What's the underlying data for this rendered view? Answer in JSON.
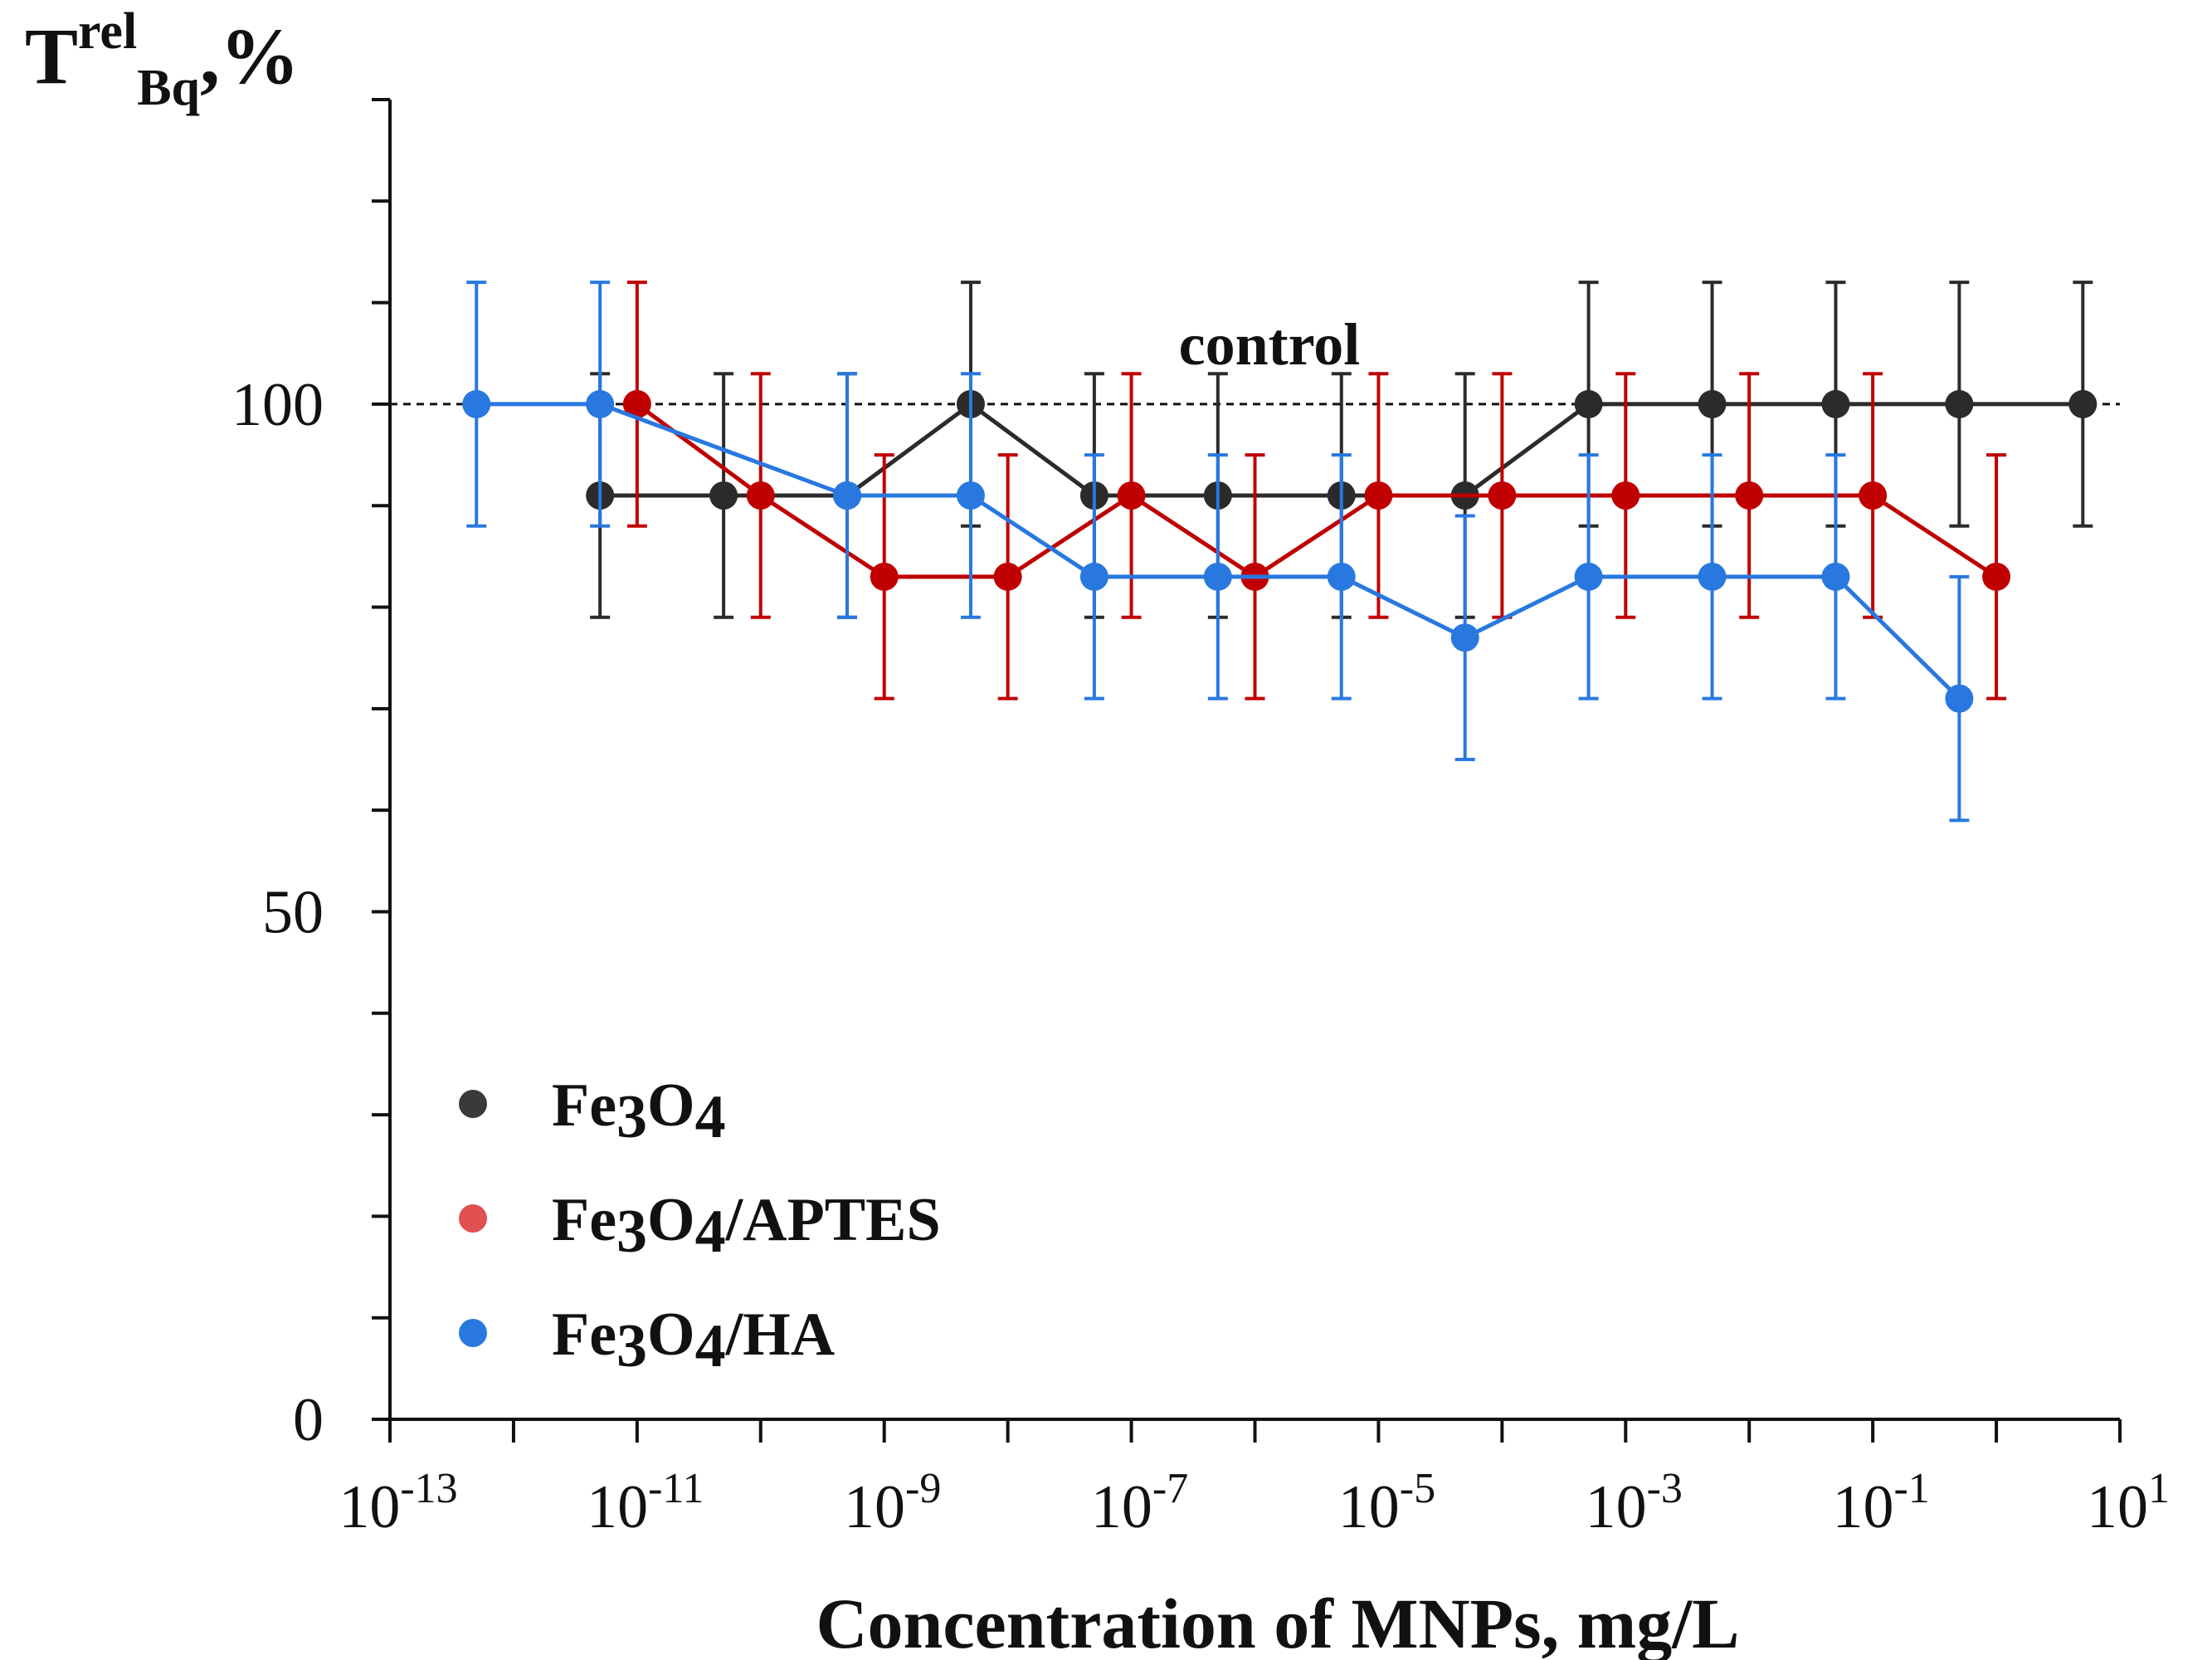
{
  "chart_data": {
    "type": "line",
    "ylabel": {
      "main": "T",
      "sup": "rel",
      "sub": "Bq",
      "suffix": ",%"
    },
    "xlabel": "Concentration of MNPs, mg/L",
    "x_scale": "log10",
    "xlim_exp": [
      -13,
      1
    ],
    "ylim": [
      0,
      130
    ],
    "y_ticks": [
      0,
      50,
      100
    ],
    "x_tick_labels": [
      {
        "base": "10",
        "exp": "-13"
      },
      {
        "base": "10",
        "exp": "-11"
      },
      {
        "base": "10",
        "exp": "-9"
      },
      {
        "base": "10",
        "exp": "-7"
      },
      {
        "base": "10",
        "exp": "-5"
      },
      {
        "base": "10",
        "exp": "-3"
      },
      {
        "base": "10",
        "exp": "-1"
      },
      {
        "base": "10",
        "exp": "1"
      }
    ],
    "control": {
      "label": "control",
      "value": 100
    },
    "legend_position": "bottom-left",
    "series": [
      {
        "name": "Fe3O4",
        "label_parts": [
          {
            "t": "Fe"
          },
          {
            "t": "3",
            "sub": true
          },
          {
            "t": "O"
          },
          {
            "t": "4",
            "sub": true
          }
        ],
        "color": "#2b2b2b",
        "log_x": [
          -11.3,
          -10.3,
          -9.3,
          -8.3,
          -7.3,
          -6.3,
          -5.3,
          -4.3,
          -3.3,
          -2.3,
          -1.3,
          -0.3,
          0.7
        ],
        "y": [
          91,
          91,
          91,
          100,
          91,
          91,
          91,
          91,
          100,
          100,
          100,
          100,
          100
        ],
        "err": [
          12,
          12,
          12,
          12,
          12,
          12,
          12,
          12,
          12,
          12,
          12,
          12,
          12
        ]
      },
      {
        "name": "Fe3O4/APTES",
        "label_parts": [
          {
            "t": "Fe"
          },
          {
            "t": "3",
            "sub": true
          },
          {
            "t": "O"
          },
          {
            "t": "4",
            "sub": true
          },
          {
            "t": "/APTES"
          }
        ],
        "color": "#c00000",
        "log_x": [
          -11,
          -10,
          -9,
          -8,
          -7,
          -6,
          -5,
          -4,
          -3,
          -2,
          -1,
          0
        ],
        "y": [
          100,
          91,
          83,
          83,
          91,
          83,
          91,
          91,
          91,
          91,
          91,
          83
        ],
        "err": [
          12,
          12,
          12,
          12,
          12,
          12,
          12,
          12,
          12,
          12,
          12,
          12
        ]
      },
      {
        "name": "Fe3O4/HA",
        "label_parts": [
          {
            "t": "Fe"
          },
          {
            "t": "3",
            "sub": true
          },
          {
            "t": "O"
          },
          {
            "t": "4",
            "sub": true
          },
          {
            "t": "/HA"
          }
        ],
        "color": "#2878e0",
        "log_x": [
          -12.3,
          -11.3,
          -9.3,
          -8.3,
          -7.3,
          -6.3,
          -5.3,
          -4.3,
          -3.3,
          -2.3,
          -1.3,
          -0.3
        ],
        "y": [
          100,
          100,
          91,
          91,
          83,
          83,
          83,
          77,
          83,
          83,
          83,
          71
        ],
        "err": [
          12,
          12,
          12,
          12,
          12,
          12,
          12,
          12,
          12,
          12,
          12,
          12
        ]
      }
    ],
    "legend_marker_colors": [
      "#3a3a3a",
      "#e05050",
      "#2878e0"
    ]
  }
}
